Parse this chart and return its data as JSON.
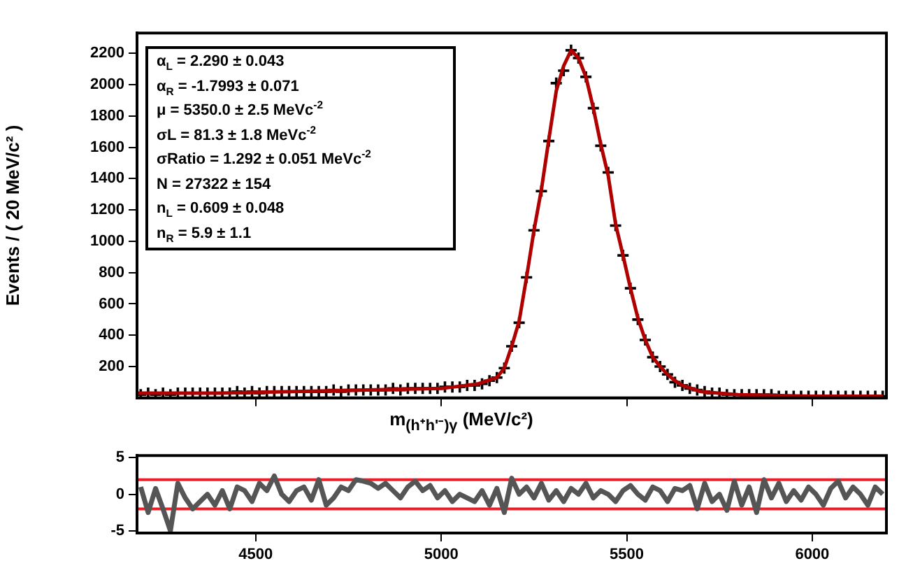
{
  "chart_data": [
    {
      "type": "scatter",
      "xlabel": "m$_{(h⁺h'⁻)γ}$ (MeV/c²)",
      "ylabel": "Events / ( 20 MeV/c² )",
      "x": [
        4190,
        4210,
        4230,
        4250,
        4270,
        4290,
        4310,
        4330,
        4350,
        4370,
        4390,
        4410,
        4430,
        4450,
        4470,
        4490,
        4510,
        4530,
        4550,
        4570,
        4590,
        4610,
        4630,
        4650,
        4670,
        4690,
        4710,
        4730,
        4750,
        4770,
        4790,
        4810,
        4830,
        4850,
        4870,
        4890,
        4910,
        4930,
        4950,
        4970,
        4990,
        5010,
        5030,
        5050,
        5070,
        5090,
        5110,
        5130,
        5150,
        5170,
        5190,
        5210,
        5230,
        5250,
        5270,
        5290,
        5310,
        5330,
        5350,
        5370,
        5390,
        5410,
        5430,
        5450,
        5470,
        5490,
        5510,
        5530,
        5550,
        5570,
        5590,
        5610,
        5630,
        5650,
        5670,
        5690,
        5710,
        5730,
        5750,
        5770,
        5790,
        5810,
        5830,
        5850,
        5870,
        5890,
        5910,
        5930,
        5950,
        5970,
        5990,
        6010,
        6030,
        6050,
        6070,
        6090,
        6110,
        6130,
        6150,
        6170,
        6190
      ],
      "series": [
        {
          "color": "#000000",
          "marker": "cross",
          "values": [
            20,
            30,
            20,
            30,
            20,
            30,
            30,
            30,
            30,
            30,
            30,
            30,
            30,
            40,
            30,
            40,
            30,
            40,
            40,
            40,
            40,
            40,
            40,
            40,
            40,
            40,
            50,
            40,
            50,
            50,
            50,
            50,
            50,
            50,
            60,
            50,
            60,
            60,
            60,
            60,
            60,
            70,
            70,
            70,
            80,
            80,
            90,
            110,
            130,
            190,
            330,
            480,
            770,
            1070,
            1320,
            1640,
            2010,
            2090,
            2220,
            2170,
            2050,
            1850,
            1610,
            1440,
            1100,
            910,
            700,
            500,
            370,
            260,
            200,
            150,
            100,
            80,
            60,
            50,
            40,
            30,
            30,
            20,
            20,
            20,
            20,
            20,
            20,
            20,
            10,
            10,
            10,
            10,
            10,
            10,
            10,
            10,
            10,
            10,
            10,
            10,
            10,
            10,
            10
          ]
        },
        {
          "type": "line",
          "color": "#b00000",
          "x": [
            4180,
            4400,
            4600,
            4800,
            5000,
            5100,
            5150,
            5170,
            5190,
            5210,
            5230,
            5250,
            5270,
            5290,
            5310,
            5330,
            5350,
            5370,
            5390,
            5410,
            5430,
            5450,
            5470,
            5490,
            5510,
            5530,
            5550,
            5570,
            5590,
            5610,
            5630,
            5650,
            5700,
            5800,
            6000,
            6190
          ],
          "values": [
            30,
            30,
            40,
            50,
            60,
            90,
            130,
            190,
            330,
            490,
            770,
            1070,
            1330,
            1650,
            1960,
            2120,
            2220,
            2170,
            2050,
            1850,
            1620,
            1420,
            1110,
            910,
            700,
            510,
            370,
            260,
            200,
            150,
            110,
            80,
            40,
            20,
            10,
            10
          ]
        }
      ],
      "xlim": [
        4180,
        6200
      ],
      "xticks": [
        {
          "value": 4500,
          "label": null
        },
        {
          "value": 5000,
          "label": null
        },
        {
          "value": 5500,
          "label": null
        },
        {
          "value": 6000,
          "label": null
        }
      ],
      "ylim": [
        0,
        2330
      ],
      "yticks": [
        200,
        400,
        600,
        800,
        1000,
        1200,
        1400,
        1600,
        1800,
        2000,
        2200
      ],
      "tick_labels": "y",
      "grid": false,
      "legend": false,
      "annotations": [
        "α$_{L}$ = 2.290 ± 0.043",
        "α$_{R}$ = -1.7993 ± 0.071",
        "μ = 5350.0 ± 2.5 MeVc$^{-2}$",
        "σL = 81.3 ± 1.8 MeVc$^{-2}$",
        "σRatio = 1.292 ± 0.051 MeVc$^{-2}$",
        "N = 27322 ± 154",
        "n$_{L}$ = 0.609 ± 0.048",
        "n$_{R}$ = 5.9 ± 1.1"
      ]
    },
    {
      "type": "line",
      "x": [
        4190,
        4210,
        4230,
        4250,
        4270,
        4290,
        4310,
        4330,
        4350,
        4370,
        4390,
        4410,
        4430,
        4450,
        4470,
        4490,
        4510,
        4530,
        4550,
        4570,
        4590,
        4610,
        4630,
        4650,
        4670,
        4690,
        4710,
        4730,
        4750,
        4770,
        4790,
        4810,
        4830,
        4850,
        4870,
        4890,
        4910,
        4930,
        4950,
        4970,
        4990,
        5010,
        5030,
        5050,
        5070,
        5090,
        5110,
        5130,
        5150,
        5170,
        5190,
        5210,
        5230,
        5250,
        5270,
        5290,
        5310,
        5330,
        5350,
        5370,
        5390,
        5410,
        5430,
        5450,
        5470,
        5490,
        5510,
        5530,
        5550,
        5570,
        5590,
        5610,
        5630,
        5650,
        5670,
        5690,
        5710,
        5730,
        5750,
        5770,
        5790,
        5810,
        5830,
        5850,
        5870,
        5890,
        5910,
        5930,
        5950,
        5970,
        5990,
        6010,
        6030,
        6050,
        6070,
        6090,
        6110,
        6130,
        6150,
        6170,
        6190
      ],
      "series": [
        {
          "color": "#555555",
          "values": [
            1,
            -2.5,
            0.8,
            -2,
            -5,
            1.5,
            -0.5,
            -2,
            -1,
            0,
            -1.5,
            0.5,
            -2,
            1,
            0.5,
            -1,
            1.5,
            0.5,
            2.5,
            0,
            -1,
            0.5,
            1,
            -0.8,
            2,
            -1.5,
            -0.5,
            1,
            0.5,
            2,
            1.8,
            1.5,
            0.8,
            1.5,
            0.5,
            -0.5,
            1,
            1.8,
            0.5,
            1.2,
            -0.5,
            0.5,
            -1,
            0,
            -0.5,
            -1,
            0.5,
            -1.5,
            0.8,
            -2.5,
            2.2,
            0,
            1,
            -0.5,
            1.5,
            -0.8,
            0.5,
            -1,
            0.8,
            0,
            1.5,
            -0.5,
            0.5,
            0,
            -1,
            0.5,
            1.2,
            0,
            -0.8,
            1,
            0.5,
            -1,
            0.8,
            0.5,
            1.2,
            -2,
            1.5,
            -1,
            0,
            -2.2,
            1.8,
            -1.5,
            1,
            -2.5,
            2,
            -0.5,
            1.5,
            -1,
            0.5,
            -0.8,
            1,
            0,
            -1.5,
            0.8,
            1.8,
            -0.5,
            1,
            0,
            -1.5,
            1,
            0
          ]
        }
      ],
      "xlim": [
        4180,
        6200
      ],
      "xticks": [
        4500,
        5000,
        5500,
        6000
      ],
      "ylim": [
        -5.3,
        5.3
      ],
      "yticks": [
        -5,
        0,
        5
      ],
      "ref_lines": [
        {
          "axis": "y",
          "value": 2,
          "color": "#e8202a"
        },
        {
          "axis": "y",
          "value": -2,
          "color": "#e8202a"
        }
      ],
      "marker": "none",
      "line_style": "solid",
      "grid": false,
      "legend": false
    }
  ]
}
